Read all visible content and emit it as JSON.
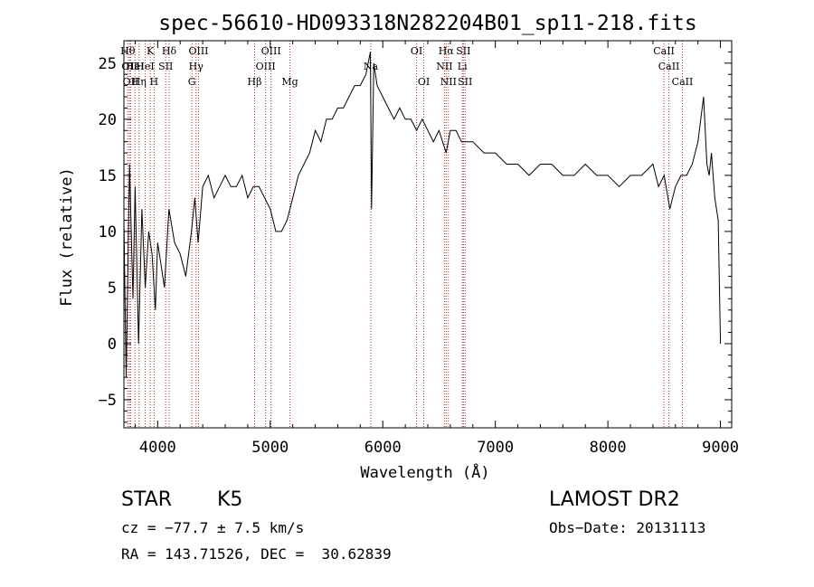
{
  "chart_data": {
    "type": "line",
    "title": "spec-56610-HD093318N282204B01_sp11-218.fits",
    "xlabel": "Wavelength (Å)",
    "ylabel": "Flux (relative)",
    "xlim": [
      3700,
      9100
    ],
    "ylim": [
      -7.5,
      27
    ],
    "x_ticks": [
      4000,
      5000,
      6000,
      7000,
      8000,
      9000
    ],
    "y_ticks": [
      -5,
      0,
      5,
      10,
      15,
      20,
      25
    ],
    "series": [
      {
        "name": "flux",
        "x": [
          3700,
          3720,
          3750,
          3780,
          3800,
          3830,
          3860,
          3890,
          3920,
          3950,
          3980,
          4000,
          4030,
          4060,
          4100,
          4150,
          4200,
          4250,
          4300,
          4330,
          4360,
          4400,
          4450,
          4500,
          4550,
          4600,
          4650,
          4700,
          4750,
          4800,
          4850,
          4900,
          4950,
          5000,
          5050,
          5100,
          5150,
          5200,
          5250,
          5300,
          5350,
          5400,
          5450,
          5500,
          5550,
          5600,
          5650,
          5700,
          5750,
          5800,
          5850,
          5890,
          5900,
          5920,
          5950,
          6000,
          6050,
          6100,
          6150,
          6200,
          6250,
          6300,
          6350,
          6400,
          6450,
          6500,
          6563,
          6600,
          6650,
          6700,
          6750,
          6800,
          6900,
          7000,
          7100,
          7200,
          7300,
          7400,
          7500,
          7600,
          7700,
          7800,
          7900,
          8000,
          8100,
          8200,
          8300,
          8400,
          8450,
          8500,
          8550,
          8600,
          8650,
          8700,
          8750,
          8800,
          8850,
          8880,
          8900,
          8920,
          8950,
          8980,
          9000
        ],
        "values": [
          11,
          -3,
          16,
          4,
          14,
          0,
          12,
          5,
          10,
          8,
          3,
          9,
          7,
          5,
          12,
          9,
          8,
          6,
          10,
          13,
          9,
          14,
          15,
          13,
          14,
          15,
          14,
          14,
          15,
          13,
          14,
          14,
          13,
          12,
          10,
          10,
          11,
          13,
          15,
          16,
          17,
          19,
          18,
          20,
          20,
          21,
          21,
          22,
          23,
          23,
          24,
          26,
          12,
          25,
          23,
          22,
          21,
          20,
          21,
          20,
          20,
          19,
          20,
          19,
          18,
          19,
          17,
          19,
          19,
          18,
          18,
          18,
          17,
          17,
          16,
          16,
          15,
          16,
          16,
          15,
          15,
          16,
          15,
          15,
          14,
          15,
          15,
          16,
          14,
          15,
          12,
          14,
          15,
          15,
          16,
          18,
          22,
          16,
          15,
          17,
          13,
          11,
          0
        ]
      }
    ],
    "lines": [
      {
        "wl": 3734,
        "label": "Hθ",
        "row": 0
      },
      {
        "wl": 3750,
        "label": "OII",
        "row": 1
      },
      {
        "wl": 3760,
        "label": "OII",
        "row": 2
      },
      {
        "wl": 3798,
        "label": "HeI",
        "row": 1
      },
      {
        "wl": 3835,
        "label": "Hη",
        "row": 2
      },
      {
        "wl": 3889,
        "label": "HeI",
        "row": 1
      },
      {
        "wl": 3934,
        "label": "K",
        "row": 0
      },
      {
        "wl": 3968,
        "label": "H",
        "row": 2
      },
      {
        "wl": 4072,
        "label": "SII",
        "row": 1
      },
      {
        "wl": 4102,
        "label": "Hδ",
        "row": 0
      },
      {
        "wl": 4304,
        "label": "G",
        "row": 2
      },
      {
        "wl": 4341,
        "label": "Hγ",
        "row": 1
      },
      {
        "wl": 4363,
        "label": "OIII",
        "row": 0
      },
      {
        "wl": 4861,
        "label": "Hβ",
        "row": 2
      },
      {
        "wl": 4959,
        "label": "OIII",
        "row": 1
      },
      {
        "wl": 5007,
        "label": "OIII",
        "row": 0
      },
      {
        "wl": 5175,
        "label": "Mg",
        "row": 2
      },
      {
        "wl": 5894,
        "label": "Na",
        "row": 1
      },
      {
        "wl": 6300,
        "label": "OI",
        "row": 0
      },
      {
        "wl": 6364,
        "label": "OI",
        "row": 2
      },
      {
        "wl": 6548,
        "label": "NII",
        "row": 1
      },
      {
        "wl": 6563,
        "label": "Hα",
        "row": 0
      },
      {
        "wl": 6583,
        "label": "NII",
        "row": 2
      },
      {
        "wl": 6707,
        "label": "Li",
        "row": 1
      },
      {
        "wl": 6716,
        "label": "SII",
        "row": 0
      },
      {
        "wl": 6731,
        "label": "SII",
        "row": 2
      },
      {
        "wl": 8498,
        "label": "CaII",
        "row": 0
      },
      {
        "wl": 8542,
        "label": "CaII",
        "row": 1
      },
      {
        "wl": 8662,
        "label": "CaII",
        "row": 2
      }
    ]
  },
  "footer": {
    "class_label": "STAR",
    "subclass": "K5",
    "survey": "LAMOST DR2",
    "cz": "cz = −77.7 ± 7.5 km/s",
    "obs_date": "Obs−Date: 20131113",
    "coords": "RA = 143.71526, DEC =  30.62839"
  },
  "colors": {
    "line_marker": "#b03030",
    "spectrum": "#000000"
  }
}
